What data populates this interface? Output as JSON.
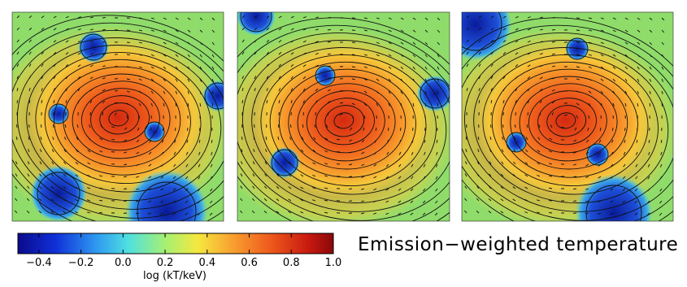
{
  "colorbar": {
    "label": "log (kT/keV)",
    "lim": [
      -0.5,
      1.0
    ],
    "ticks": [
      {
        "value": -0.4,
        "label": "−0.4"
      },
      {
        "value": -0.2,
        "label": "−0.2"
      },
      {
        "value": 0.0,
        "label": "0.0"
      },
      {
        "value": 0.2,
        "label": "0.2"
      },
      {
        "value": 0.4,
        "label": "0.4"
      },
      {
        "value": 0.6,
        "label": "0.6"
      },
      {
        "value": 0.8,
        "label": "0.8"
      },
      {
        "value": 1.0,
        "label": "1.0"
      }
    ]
  },
  "caption": "Emission−weighted temperature"
}
